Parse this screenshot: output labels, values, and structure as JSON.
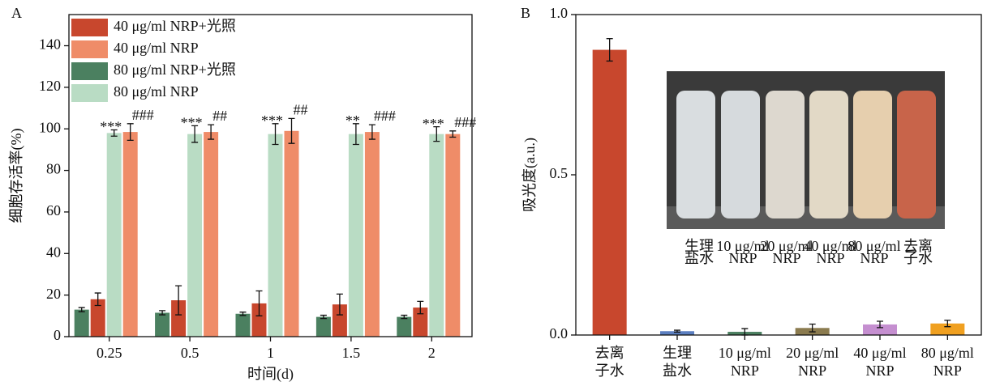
{
  "chart_data": [
    {
      "type": "bar",
      "panel": "A",
      "xlabel": "时间(d)",
      "ylabel": "细胞存活率(%)",
      "categories": [
        "0.25",
        "0.5",
        "1",
        "1.5",
        "2"
      ],
      "ylim": [
        0,
        155
      ],
      "yticks": [
        0,
        20,
        40,
        60,
        80,
        100,
        120,
        140
      ],
      "legend": "upper left",
      "series": [
        {
          "name": "40 μg/ml NRP+光照",
          "color": "#c8472d",
          "values": [
            18,
            17.5,
            16,
            15.5,
            14
          ],
          "errors": [
            3,
            7,
            6,
            5,
            3
          ]
        },
        {
          "name": "40 μg/ml NRP",
          "color": "#ef8c68",
          "values": [
            98.5,
            98.5,
            99,
            98.5,
            97.5
          ],
          "errors": [
            4,
            3.5,
            6,
            3.5,
            1.5
          ],
          "labels": [
            "###",
            "##",
            "##",
            "###",
            "###"
          ]
        },
        {
          "name": "80 μg/ml NRP+光照",
          "color": "#4b8060",
          "values": [
            13,
            11.5,
            11,
            9.5,
            9.5
          ],
          "errors": [
            1,
            1,
            0.8,
            0.8,
            0.8
          ]
        },
        {
          "name": "80 μg/ml NRP",
          "color": "#b9dcc4",
          "values": [
            98,
            97.5,
            97.5,
            97.5,
            97.5
          ],
          "errors": [
            1.5,
            4,
            5,
            5,
            3.5
          ],
          "labels": [
            "***",
            "***",
            "***",
            "**",
            "***"
          ]
        }
      ]
    },
    {
      "type": "bar",
      "panel": "B",
      "ylabel": "吸光度(a.u.)",
      "categories": [
        [
          "去离",
          "子水"
        ],
        [
          "生理",
          "盐水"
        ],
        [
          "10 μg/ml",
          "NRP"
        ],
        [
          "20 μg/ml",
          "NRP"
        ],
        [
          "40 μg/ml",
          "NRP"
        ],
        [
          "80 μg/ml",
          "NRP"
        ]
      ],
      "values": [
        0.89,
        0.012,
        0.01,
        0.022,
        0.033,
        0.036
      ],
      "errors": [
        0.035,
        0.003,
        0.01,
        0.012,
        0.01,
        0.01
      ],
      "colors": [
        "#c8472d",
        "#5b7fc0",
        "#4b8060",
        "#8b7b4f",
        "#c58fd0",
        "#f0a020"
      ],
      "ylim": [
        0,
        1.0
      ],
      "yticks": [
        {
          "value": 0,
          "label": "0.0"
        },
        0.5,
        {
          "value": 1.0,
          "label": "1.0"
        }
      ],
      "inset_labels": [
        [
          "生理",
          "盐水"
        ],
        [
          "10 μg/ml",
          "NRP"
        ],
        [
          "20 μg/ml",
          "NRP"
        ],
        [
          "40 μg/ml",
          "NRP"
        ],
        [
          "80 μg/ml",
          "NRP"
        ],
        [
          "去离",
          "子水"
        ]
      ]
    }
  ]
}
